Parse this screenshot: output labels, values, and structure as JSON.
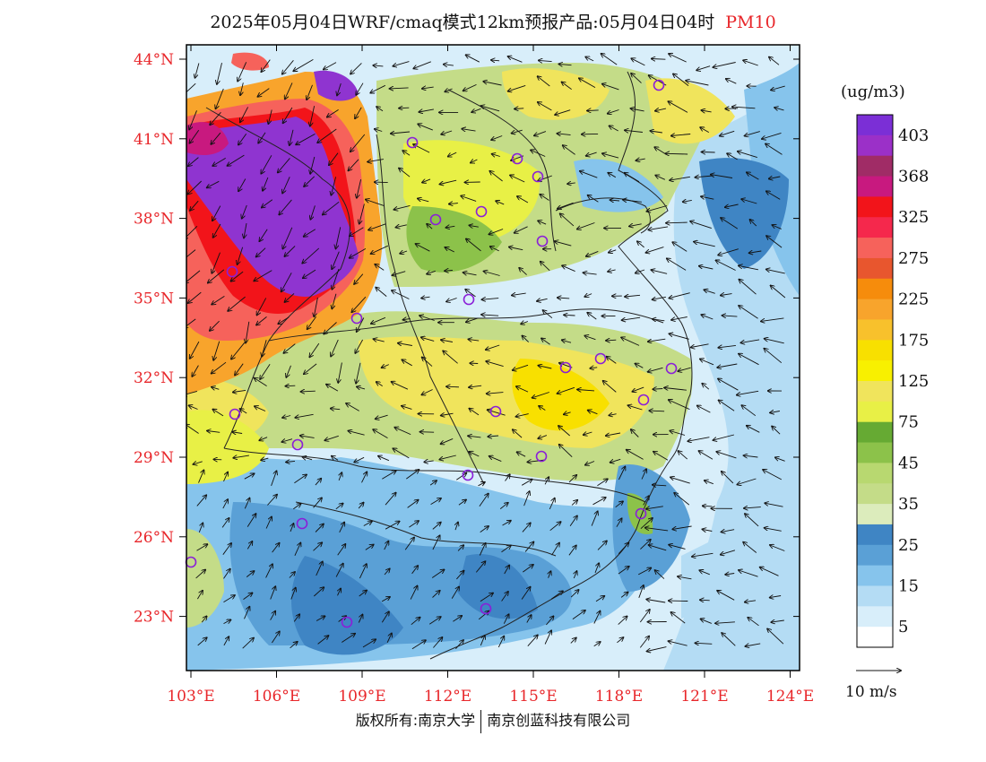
{
  "title": {
    "main": "2025年05月04日WRF/cmaq模式12km预报产品:05月04日04时",
    "pollutant": "PM10"
  },
  "map": {
    "lon_ticks": [
      "103°E",
      "106°E",
      "109°E",
      "112°E",
      "115°E",
      "118°E",
      "121°E",
      "124°E"
    ],
    "lat_ticks": [
      "44°N",
      "41°N",
      "38°N",
      "35°N",
      "32°N",
      "29°N",
      "26°N",
      "23°N"
    ],
    "tick_color": "#e8262a"
  },
  "legend": {
    "unit": "(ug/m3)",
    "levels": [
      "403",
      "368",
      "325",
      "275",
      "225",
      "175",
      "125",
      "75",
      "45",
      "35",
      "25",
      "15",
      "5"
    ],
    "colors": [
      "#7b2fd6",
      "#9b30c8",
      "#a02c66",
      "#c8197f",
      "#f2141a",
      "#f5284c",
      "#f6625b",
      "#e8562e",
      "#f68c0c",
      "#f8a42c",
      "#f8c12c",
      "#f8e000",
      "#f8f000",
      "#f0e45c",
      "#e8f046",
      "#66aa33",
      "#8cc24a",
      "#b8d870",
      "#c4dc88",
      "#dcecbc",
      "#3f85c4",
      "#5aa0d6",
      "#86c4ec",
      "#b4dcf4",
      "#d8eefa",
      "#ffffff"
    ]
  },
  "wind_ref": {
    "label": "10 m/s"
  },
  "copyright": {
    "left": "版权所有:南京大学",
    "right": "南京创蓝科技有限公司"
  }
}
